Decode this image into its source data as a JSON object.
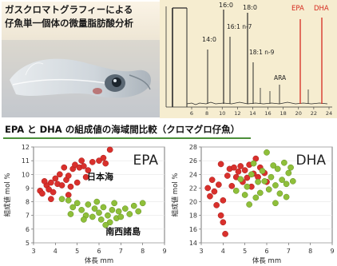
{
  "photo": {
    "title_line1": "ガスクロマトグラフィーによる",
    "title_line2": "仔魚単一個体の微量脂肪酸分析"
  },
  "chromatogram": {
    "peak_labels": [
      "14:0",
      "16:0",
      "16:1 n-7",
      "18:0",
      "18:1 n-9",
      "ARA",
      "EPA",
      "DHA"
    ],
    "x_ticks": [
      "6",
      "8",
      "10",
      "12",
      "14",
      "16",
      "18",
      "20",
      "22",
      "24"
    ],
    "colors": {
      "trace": "#2a2a2a",
      "highlight": "#d62b1f",
      "background": "#f6edd0"
    }
  },
  "section_title": "EPA と DHA の組成値の海域間比較（クロマグロ仔魚）",
  "chart_data": [
    {
      "type": "scatter",
      "title": "EPA",
      "xlabel": "体長 mm",
      "ylabel": "組成値 mol %",
      "xlim": [
        3,
        9
      ],
      "ylim": [
        5,
        12
      ],
      "x_ticks": [
        3,
        4,
        5,
        6,
        7,
        8,
        9
      ],
      "y_ticks": [
        5,
        6,
        7,
        8,
        9,
        10,
        11,
        12
      ],
      "series": [
        {
          "name": "日本海",
          "color": "#d9302c",
          "points": [
            [
              3.3,
              8.8
            ],
            [
              3.4,
              8.6
            ],
            [
              3.6,
              9.2
            ],
            [
              3.7,
              8.9
            ],
            [
              3.8,
              9.4
            ],
            [
              3.9,
              8.7
            ],
            [
              3.8,
              8.2
            ],
            [
              4.1,
              9.3
            ],
            [
              4.0,
              9.7
            ],
            [
              4.2,
              10.0
            ],
            [
              4.3,
              9.2
            ],
            [
              4.5,
              9.6
            ],
            [
              4.6,
              9.9
            ],
            [
              4.8,
              10.4
            ],
            [
              4.4,
              10.5
            ],
            [
              4.9,
              10.7
            ],
            [
              5.1,
              10.5
            ],
            [
              5.3,
              10.6
            ],
            [
              5.2,
              11.0
            ],
            [
              5.5,
              10.3
            ],
            [
              5.7,
              10.9
            ],
            [
              6.0,
              11.0
            ],
            [
              6.2,
              11.2
            ],
            [
              6.5,
              11.8
            ],
            [
              6.3,
              10.8
            ],
            [
              4.6,
              8.5
            ],
            [
              5.0,
              9.4
            ],
            [
              5.4,
              9.8
            ],
            [
              4.7,
              9.1
            ],
            [
              3.5,
              9.5
            ]
          ]
        },
        {
          "name": "南西諸島",
          "color": "#8fbf3a",
          "points": [
            [
              4.3,
              8.2
            ],
            [
              4.6,
              8.1
            ],
            [
              4.8,
              7.6
            ],
            [
              4.7,
              7.1
            ],
            [
              5.0,
              7.9
            ],
            [
              5.2,
              7.4
            ],
            [
              5.4,
              7.0
            ],
            [
              5.5,
              7.8
            ],
            [
              5.7,
              6.9
            ],
            [
              5.8,
              7.5
            ],
            [
              6.0,
              7.2
            ],
            [
              6.1,
              6.7
            ],
            [
              6.2,
              7.6
            ],
            [
              6.4,
              7.0
            ],
            [
              6.5,
              6.5
            ],
            [
              6.6,
              7.4
            ],
            [
              6.8,
              6.8
            ],
            [
              6.9,
              7.3
            ],
            [
              7.0,
              6.9
            ],
            [
              7.2,
              7.5
            ],
            [
              7.4,
              7.1
            ],
            [
              7.6,
              7.7
            ],
            [
              7.8,
              7.3
            ],
            [
              8.0,
              7.9
            ],
            [
              6.7,
              7.9
            ],
            [
              5.9,
              8.0
            ],
            [
              5.3,
              6.7
            ],
            [
              6.3,
              6.3
            ]
          ]
        }
      ]
    },
    {
      "type": "scatter",
      "title": "DHA",
      "xlabel": "体長 mm",
      "ylabel": "組成値 mol %",
      "xlim": [
        3,
        9
      ],
      "ylim": [
        14,
        28
      ],
      "x_ticks": [
        3,
        4,
        5,
        6,
        7,
        8,
        9
      ],
      "y_ticks": [
        14,
        16,
        18,
        20,
        22,
        24,
        26,
        28
      ],
      "series": [
        {
          "color": "#d9302c",
          "points": [
            [
              3.3,
              22.0
            ],
            [
              3.4,
              20.8
            ],
            [
              3.5,
              23.2
            ],
            [
              3.6,
              21.5
            ],
            [
              3.7,
              19.5
            ],
            [
              3.8,
              22.5
            ],
            [
              3.9,
              18.0
            ],
            [
              4.0,
              17.0
            ],
            [
              4.1,
              15.3
            ],
            [
              4.0,
              20.2
            ],
            [
              4.2,
              23.8
            ],
            [
              4.3,
              24.8
            ],
            [
              4.4,
              22.3
            ],
            [
              4.5,
              25.0
            ],
            [
              4.6,
              23.6
            ],
            [
              4.7,
              24.4
            ],
            [
              4.8,
              25.2
            ],
            [
              4.9,
              22.9
            ],
            [
              5.0,
              24.6
            ],
            [
              5.1,
              23.5
            ],
            [
              5.2,
              25.4
            ],
            [
              5.3,
              22.2
            ],
            [
              5.4,
              24.1
            ],
            [
              5.5,
              26.3
            ],
            [
              5.6,
              23.6
            ],
            [
              5.7,
              25.0
            ],
            [
              5.9,
              24.2
            ],
            [
              6.0,
              22.9
            ],
            [
              3.9,
              25.5
            ]
          ]
        },
        {
          "color": "#8fbf3a",
          "points": [
            [
              4.6,
              21.6
            ],
            [
              4.8,
              23.3
            ],
            [
              5.0,
              21.0
            ],
            [
              5.1,
              22.2
            ],
            [
              5.3,
              24.0
            ],
            [
              5.5,
              20.6
            ],
            [
              5.6,
              22.9
            ],
            [
              5.7,
              21.3
            ],
            [
              5.8,
              24.5
            ],
            [
              5.9,
              23.0
            ],
            [
              6.0,
              27.2
            ],
            [
              6.1,
              21.8
            ],
            [
              6.2,
              23.6
            ],
            [
              6.3,
              25.3
            ],
            [
              6.4,
              22.4
            ],
            [
              6.5,
              24.8
            ],
            [
              6.6,
              21.2
            ],
            [
              6.7,
              23.2
            ],
            [
              6.8,
              25.7
            ],
            [
              6.9,
              22.6
            ],
            [
              7.0,
              24.2
            ],
            [
              7.2,
              23.0
            ],
            [
              6.4,
              19.8
            ],
            [
              5.4,
              25.6
            ],
            [
              5.2,
              19.6
            ],
            [
              6.9,
              20.7
            ],
            [
              7.1,
              25.0
            ]
          ]
        }
      ]
    }
  ],
  "labels": {
    "japan_sea": "日本海",
    "nansei_islands": "南西諸島"
  }
}
